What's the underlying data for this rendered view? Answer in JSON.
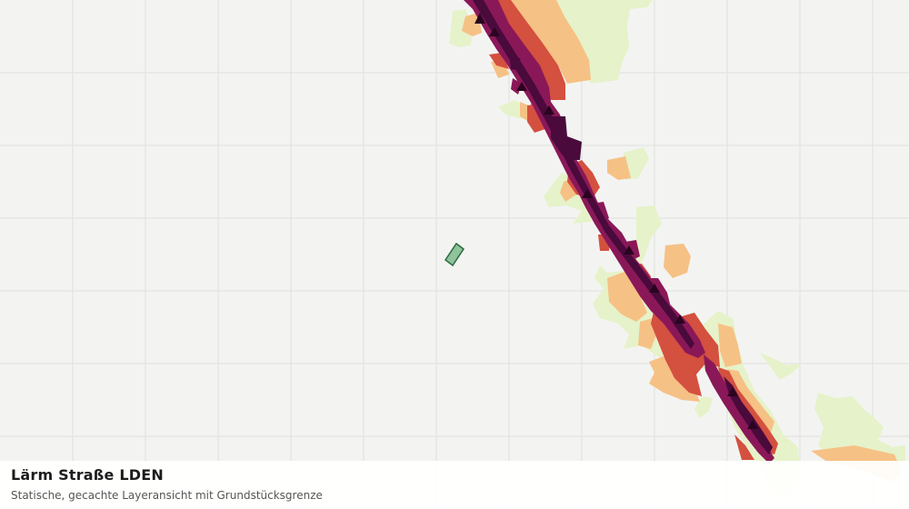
{
  "layer": {
    "title": "Lärm Straße LDEN",
    "subtitle": "Statische, gecachte Layeransicht mit Grundstücksgrenze"
  },
  "map": {
    "background_color": "#f3f4f2",
    "grid_color": "#dfe1de",
    "noise_colors": {
      "lowest": "#e6f2c9",
      "low": "#f6c185",
      "medium": "#d4503f",
      "high": "#8a1858",
      "highest": "#4a0a3c"
    },
    "parcel": {
      "fill": "#8fc39b",
      "stroke": "#2e6b3d"
    }
  }
}
